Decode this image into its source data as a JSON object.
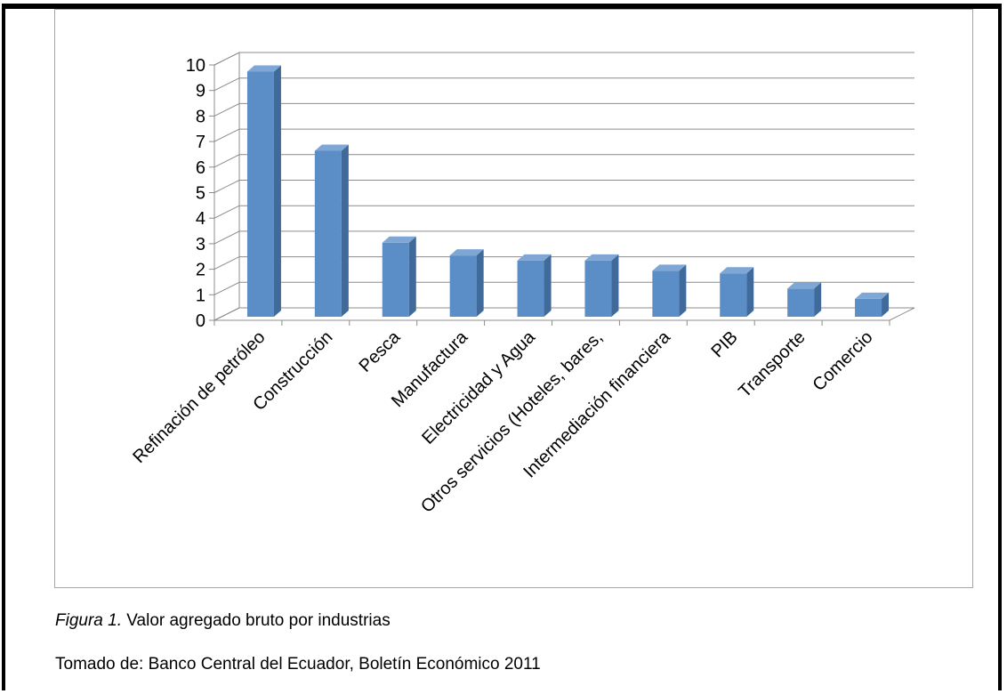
{
  "chart_data": {
    "type": "bar",
    "style": "3d-column",
    "categories": [
      "Refinación de petróleo",
      "Construcción",
      "Pesca",
      "Manufactura",
      "Electricidad y Agua",
      "Otros servicios (Hoteles, bares,",
      "Intermediación financiera",
      "PIB",
      "Transporte",
      "Comercio"
    ],
    "values": [
      9.6,
      6.5,
      2.9,
      2.4,
      2.2,
      2.2,
      1.8,
      1.7,
      1.1,
      0.7
    ],
    "ylim": [
      0,
      10
    ],
    "yticks": [
      "0",
      "1",
      "2",
      "3",
      "4",
      "5",
      "6",
      "7",
      "8",
      "9",
      "10"
    ],
    "grid": true,
    "colors": {
      "bar_front": "#5b8ec6",
      "bar_side": "#3f6a9a",
      "bar_top": "#7ea7d6",
      "grid": "#8c8c8c"
    }
  },
  "caption": {
    "label": "Figura 1.",
    "text": " Valor agregado bruto por industrias"
  },
  "source": "Tomado de: Banco Central del Ecuador, Boletín Económico  2011"
}
